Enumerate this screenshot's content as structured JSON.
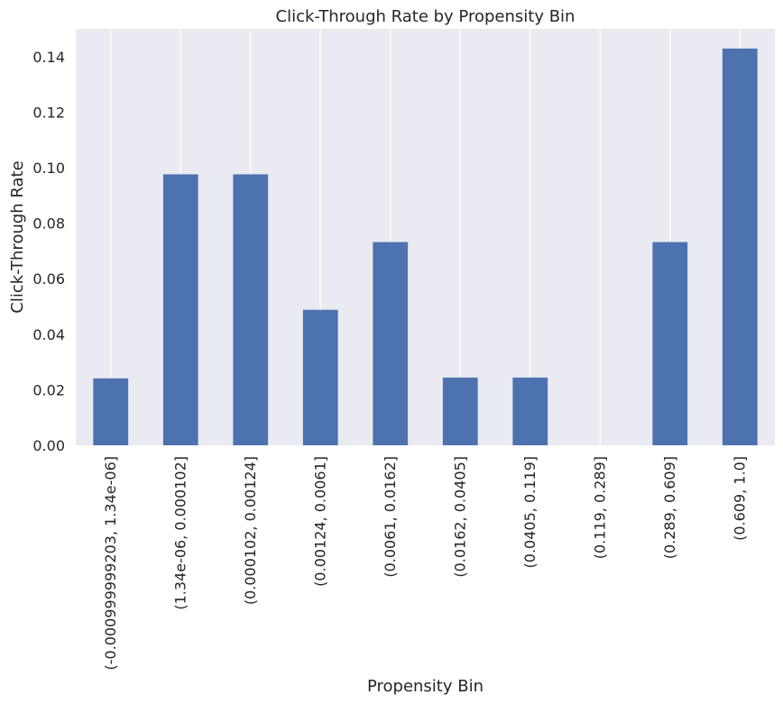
{
  "chart_data": {
    "type": "bar",
    "title": "Click-Through Rate by Propensity Bin",
    "xlabel": "Propensity Bin",
    "ylabel": "Click-Through Rate",
    "categories": [
      "(-0.000999999203, 1.34e-06]",
      "(1.34e-06, 0.000102]",
      "(0.000102, 0.00124]",
      "(0.00124, 0.0061]",
      "(0.0061, 0.0162]",
      "(0.0162, 0.0405]",
      "(0.0405, 0.119]",
      "(0.119, 0.289]",
      "(0.289, 0.609]",
      "(0.609, 1.0]"
    ],
    "values": [
      0.0241,
      0.0976,
      0.0976,
      0.0488,
      0.0732,
      0.0244,
      0.0244,
      0.0,
      0.0732,
      0.1429
    ],
    "ylim": [
      0,
      0.15
    ],
    "yticks": [
      "0.00",
      "0.02",
      "0.04",
      "0.06",
      "0.08",
      "0.10",
      "0.12",
      "0.14"
    ],
    "grid": "vertical",
    "colors": {
      "bar": "#4c72b0",
      "background": "#eaeaf2",
      "grid": "#ffffff"
    }
  }
}
